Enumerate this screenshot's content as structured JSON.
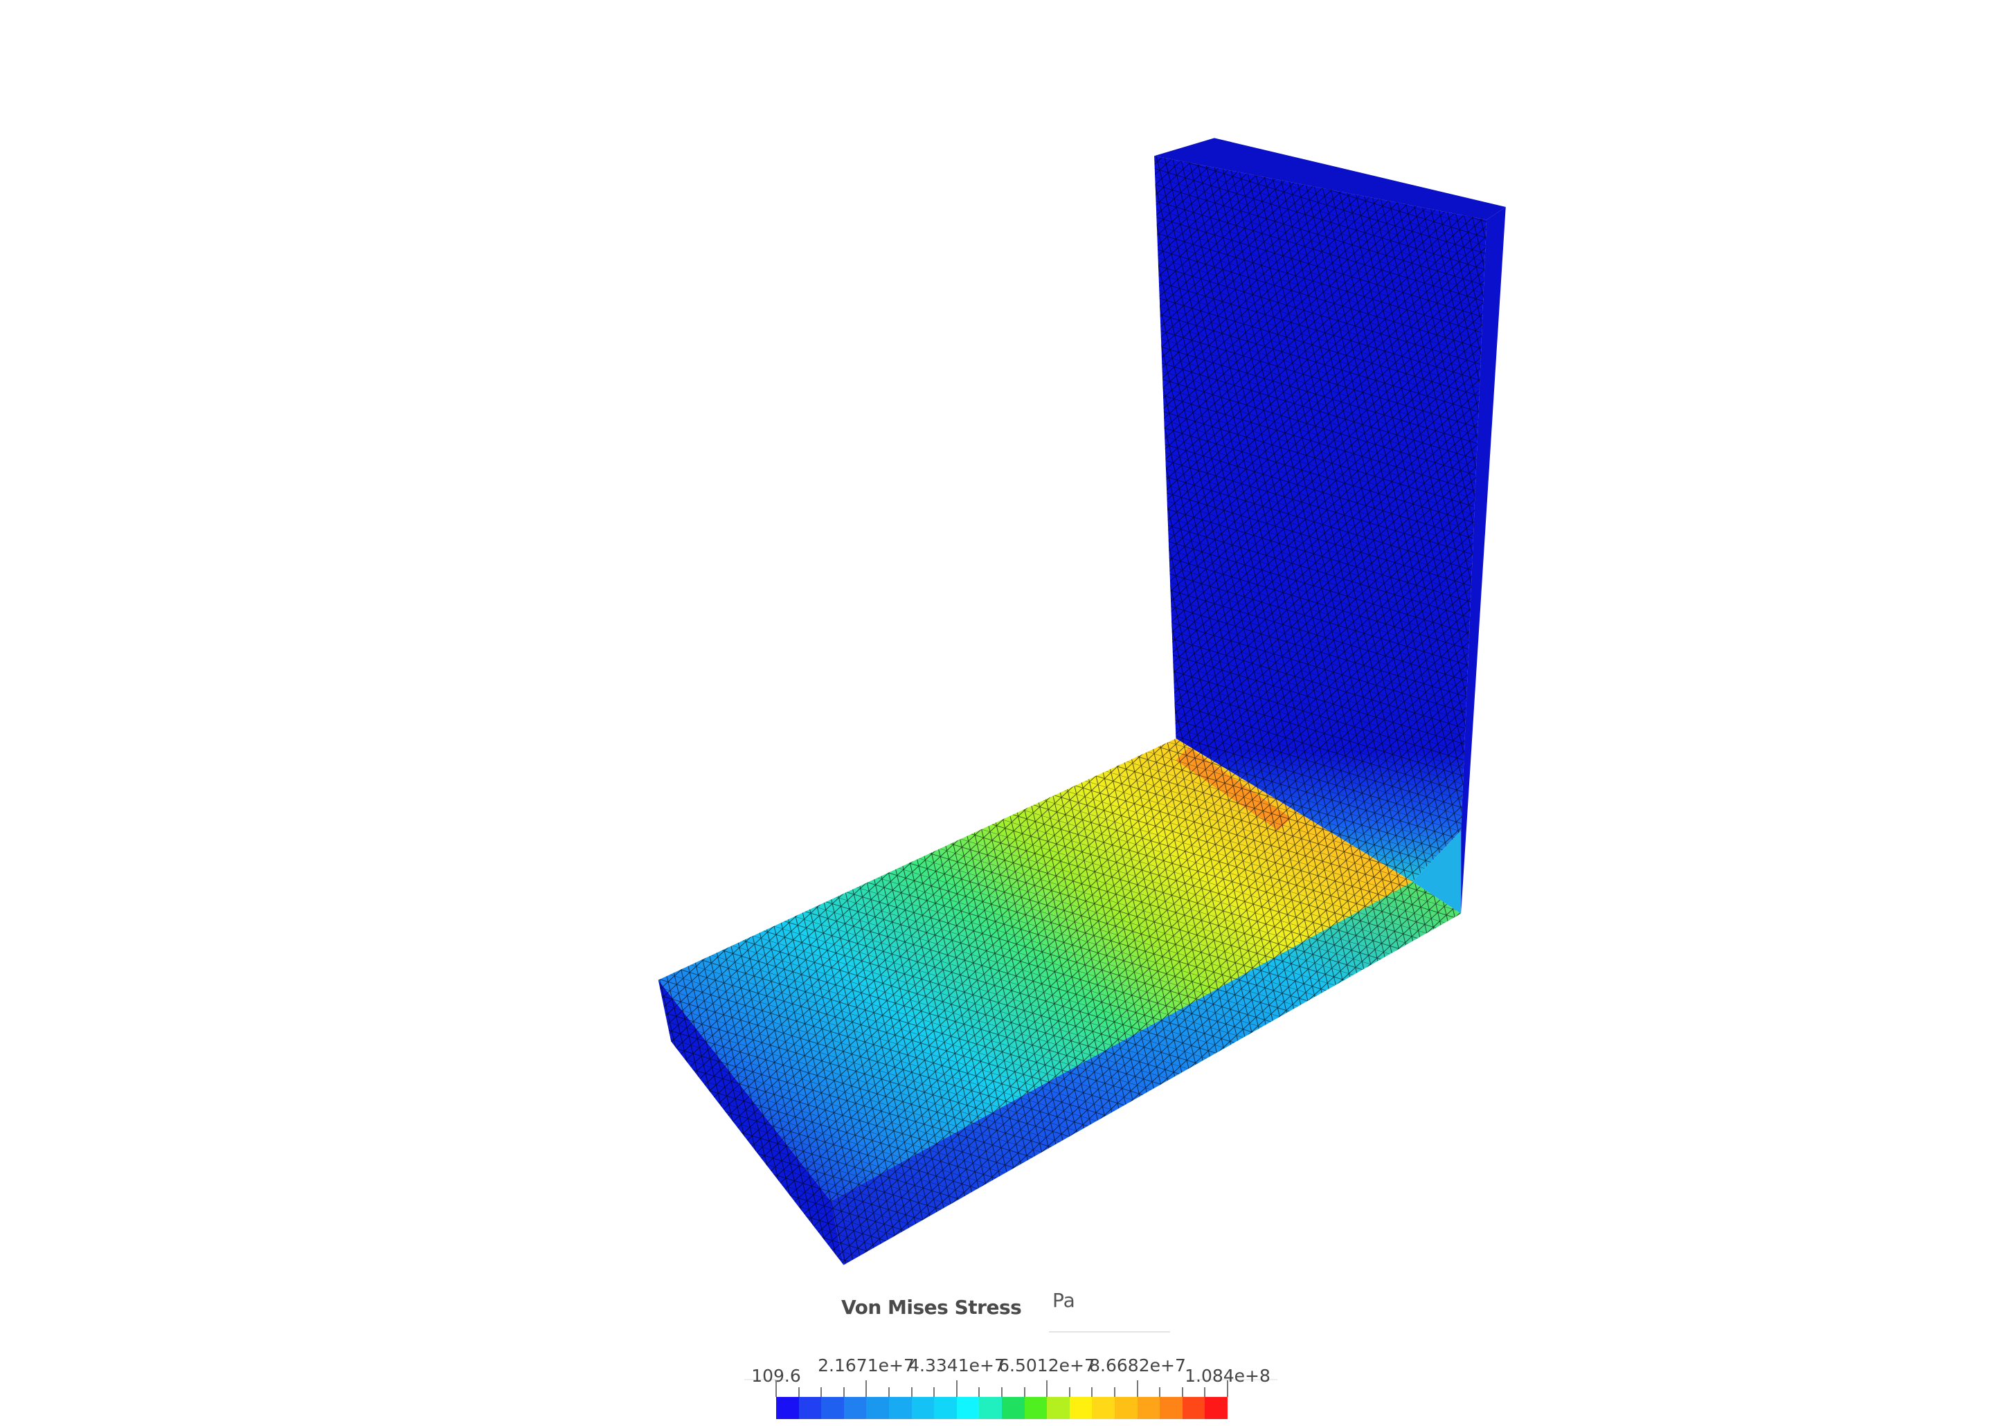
{
  "legend": {
    "title": "Von Mises Stress",
    "unit": "Pa",
    "tick_labels": [
      "109.6",
      "2.1671e+7",
      "4.3341e+7",
      "6.5012e+7",
      "8.6682e+7",
      "1.084e+8"
    ],
    "min": 109.6,
    "max": 108400000,
    "colors": [
      "#1a10f5",
      "#2040f2",
      "#2060f0",
      "#2080f0",
      "#1a98f0",
      "#18aaf2",
      "#15c2f5",
      "#12d6f8",
      "#10f5ff",
      "#20f0c0",
      "#20e060",
      "#50f020",
      "#b4f020",
      "#fff010",
      "#ffd818",
      "#ffc015",
      "#ffa418",
      "#ff8418",
      "#ff4818",
      "#ff1818"
    ]
  },
  "model": {
    "wall_color": "#0a10d8",
    "mesh_color": "#000000"
  }
}
